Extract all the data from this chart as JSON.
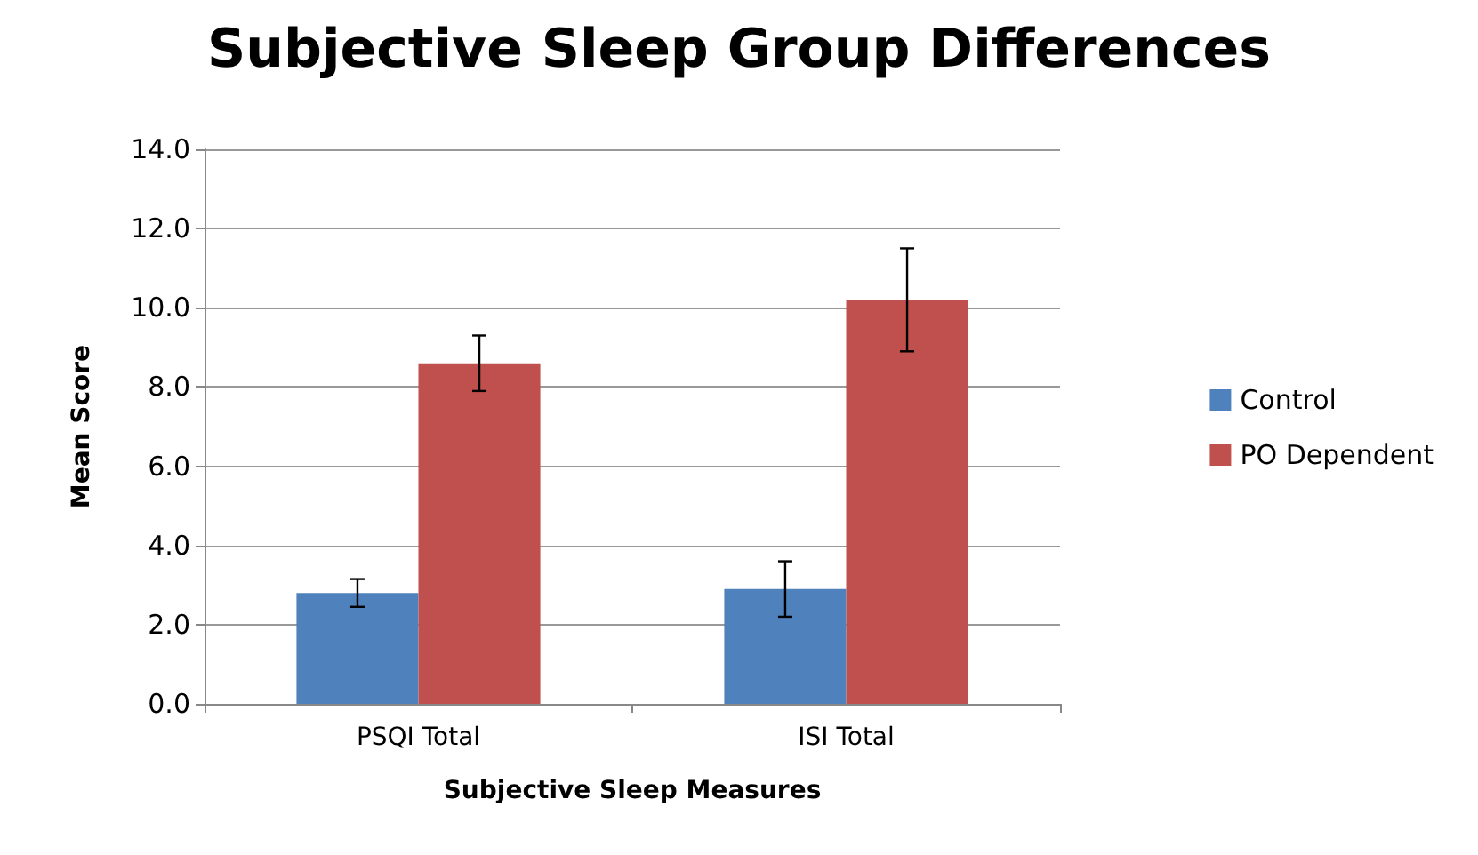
{
  "chart_data": {
    "type": "bar",
    "title": "Subjective Sleep Group Differences",
    "xlabel": "Subjective Sleep Measures",
    "ylabel": "Mean Score",
    "categories": [
      "PSQI Total",
      "ISI Total"
    ],
    "series": [
      {
        "name": "Control",
        "color": "#4f81bd",
        "values": [
          2.8,
          2.9
        ],
        "errors": [
          0.35,
          0.7
        ]
      },
      {
        "name": "PO Dependent",
        "color": "#c0504d",
        "values": [
          8.6,
          10.2
        ],
        "errors": [
          0.7,
          1.3
        ]
      }
    ],
    "ylim": [
      0,
      14
    ],
    "yticks": [
      {
        "value": 0,
        "label": "0.0"
      },
      {
        "value": 2,
        "label": "2.0"
      },
      {
        "value": 4,
        "label": "4.0"
      },
      {
        "value": 6,
        "label": "6.0"
      },
      {
        "value": 8,
        "label": "8.0"
      },
      {
        "value": 10,
        "label": "10.0"
      },
      {
        "value": 12,
        "label": "12.0"
      },
      {
        "value": 14,
        "label": "14.0"
      }
    ],
    "grid": "y",
    "legend": "right"
  }
}
